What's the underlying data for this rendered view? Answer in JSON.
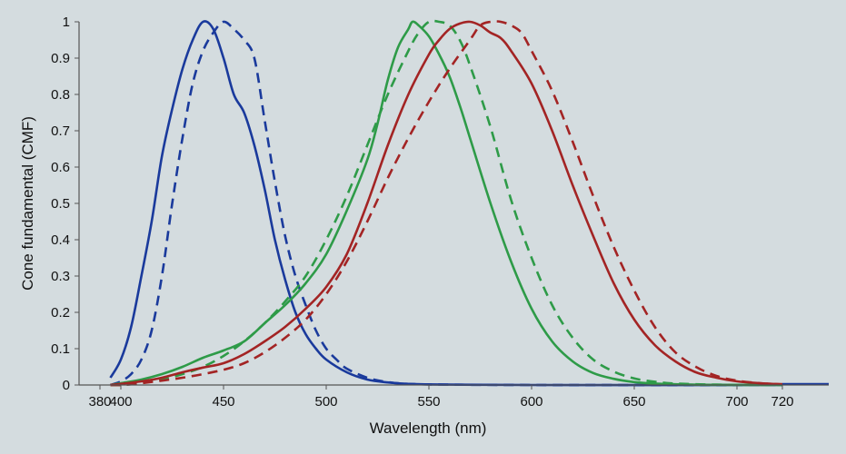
{
  "chart_data": {
    "type": "line",
    "title": "",
    "xlabel": "Wavelength (nm)",
    "ylabel": "Cone fundamental (CMF)",
    "xlim": [
      387,
      912
    ],
    "ylim": [
      0,
      1
    ],
    "x_ticks": [
      380,
      400,
      450,
      500,
      550,
      600,
      650,
      700,
      720
    ],
    "y_ticks": [
      "0",
      "0.1",
      "0.2",
      "0.3",
      "0.4",
      "0.5",
      "0.6",
      "0.7",
      "0.8",
      "0.9",
      "1"
    ],
    "plot_background": "#d4dcdf",
    "grid": false,
    "legend": "none",
    "series": [
      {
        "color": "#1a3a9c",
        "style": "solid",
        "points": [
          [
            390,
            0.02
          ],
          [
            400,
            0.07
          ],
          [
            405,
            0.16
          ],
          [
            410,
            0.3
          ],
          [
            415,
            0.45
          ],
          [
            420,
            0.63
          ],
          [
            425,
            0.76
          ],
          [
            430,
            0.87
          ],
          [
            435,
            0.95
          ],
          [
            440,
            1.0
          ],
          [
            445,
            0.98
          ],
          [
            450,
            0.9
          ],
          [
            455,
            0.8
          ],
          [
            460,
            0.75
          ],
          [
            465,
            0.66
          ],
          [
            470,
            0.54
          ],
          [
            475,
            0.4
          ],
          [
            480,
            0.29
          ],
          [
            485,
            0.2
          ],
          [
            490,
            0.14
          ],
          [
            495,
            0.1
          ],
          [
            500,
            0.07
          ],
          [
            510,
            0.035
          ],
          [
            520,
            0.015
          ],
          [
            530,
            0.007
          ],
          [
            540,
            0.003
          ],
          [
            560,
            0.001
          ],
          [
            600,
            0.0
          ],
          [
            720,
            0.0
          ]
        ]
      },
      {
        "color": "#1a3a9c",
        "style": "dashed",
        "points": [
          [
            390,
            0.0
          ],
          [
            400,
            0.01
          ],
          [
            405,
            0.03
          ],
          [
            410,
            0.07
          ],
          [
            415,
            0.15
          ],
          [
            420,
            0.3
          ],
          [
            425,
            0.5
          ],
          [
            430,
            0.68
          ],
          [
            435,
            0.83
          ],
          [
            440,
            0.92
          ],
          [
            445,
            0.97
          ],
          [
            450,
            1.0
          ],
          [
            455,
            0.98
          ],
          [
            460,
            0.95
          ],
          [
            465,
            0.9
          ],
          [
            470,
            0.73
          ],
          [
            475,
            0.56
          ],
          [
            480,
            0.41
          ],
          [
            485,
            0.3
          ],
          [
            490,
            0.22
          ],
          [
            495,
            0.15
          ],
          [
            500,
            0.1
          ],
          [
            505,
            0.07
          ],
          [
            510,
            0.045
          ],
          [
            520,
            0.02
          ],
          [
            530,
            0.008
          ],
          [
            540,
            0.003
          ],
          [
            560,
            0.001
          ],
          [
            600,
            0.0
          ],
          [
            720,
            0.0
          ]
        ]
      },
      {
        "color": "#2e9b48",
        "style": "solid",
        "points": [
          [
            390,
            0.0
          ],
          [
            400,
            0.005
          ],
          [
            410,
            0.015
          ],
          [
            420,
            0.03
          ],
          [
            430,
            0.05
          ],
          [
            440,
            0.075
          ],
          [
            450,
            0.095
          ],
          [
            460,
            0.12
          ],
          [
            470,
            0.17
          ],
          [
            480,
            0.22
          ],
          [
            490,
            0.28
          ],
          [
            500,
            0.36
          ],
          [
            510,
            0.48
          ],
          [
            520,
            0.62
          ],
          [
            525,
            0.72
          ],
          [
            530,
            0.84
          ],
          [
            535,
            0.93
          ],
          [
            540,
            0.98
          ],
          [
            542,
            1.0
          ],
          [
            545,
            0.99
          ],
          [
            550,
            0.96
          ],
          [
            555,
            0.91
          ],
          [
            560,
            0.85
          ],
          [
            565,
            0.77
          ],
          [
            570,
            0.68
          ],
          [
            580,
            0.5
          ],
          [
            590,
            0.34
          ],
          [
            600,
            0.21
          ],
          [
            610,
            0.12
          ],
          [
            620,
            0.065
          ],
          [
            630,
            0.033
          ],
          [
            640,
            0.017
          ],
          [
            650,
            0.008
          ],
          [
            660,
            0.004
          ],
          [
            670,
            0.002
          ],
          [
            690,
            0.0005
          ],
          [
            720,
            0.0
          ]
        ]
      },
      {
        "color": "#2e9b48",
        "style": "dashed",
        "points": [
          [
            390,
            0.0
          ],
          [
            400,
            0.0
          ],
          [
            410,
            0.005
          ],
          [
            420,
            0.015
          ],
          [
            430,
            0.03
          ],
          [
            440,
            0.05
          ],
          [
            450,
            0.08
          ],
          [
            460,
            0.12
          ],
          [
            470,
            0.17
          ],
          [
            480,
            0.23
          ],
          [
            490,
            0.3
          ],
          [
            500,
            0.4
          ],
          [
            510,
            0.52
          ],
          [
            520,
            0.66
          ],
          [
            530,
            0.8
          ],
          [
            540,
            0.92
          ],
          [
            545,
            0.97
          ],
          [
            550,
            1.0
          ],
          [
            555,
            1.0
          ],
          [
            560,
            0.99
          ],
          [
            565,
            0.95
          ],
          [
            570,
            0.88
          ],
          [
            580,
            0.71
          ],
          [
            590,
            0.51
          ],
          [
            600,
            0.35
          ],
          [
            610,
            0.22
          ],
          [
            620,
            0.13
          ],
          [
            630,
            0.07
          ],
          [
            640,
            0.037
          ],
          [
            650,
            0.018
          ],
          [
            660,
            0.009
          ],
          [
            670,
            0.004
          ],
          [
            690,
            0.001
          ],
          [
            720,
            0.0
          ]
        ]
      },
      {
        "color": "#a32424",
        "style": "solid",
        "points": [
          [
            390,
            0.0
          ],
          [
            400,
            0.003
          ],
          [
            410,
            0.01
          ],
          [
            420,
            0.02
          ],
          [
            430,
            0.035
          ],
          [
            440,
            0.048
          ],
          [
            450,
            0.06
          ],
          [
            460,
            0.085
          ],
          [
            470,
            0.12
          ],
          [
            480,
            0.16
          ],
          [
            490,
            0.21
          ],
          [
            500,
            0.27
          ],
          [
            510,
            0.36
          ],
          [
            520,
            0.5
          ],
          [
            530,
            0.66
          ],
          [
            540,
            0.8
          ],
          [
            550,
            0.91
          ],
          [
            555,
            0.95
          ],
          [
            560,
            0.98
          ],
          [
            565,
            0.995
          ],
          [
            570,
            1.0
          ],
          [
            575,
            0.99
          ],
          [
            580,
            0.97
          ],
          [
            585,
            0.955
          ],
          [
            590,
            0.92
          ],
          [
            600,
            0.83
          ],
          [
            610,
            0.7
          ],
          [
            620,
            0.55
          ],
          [
            630,
            0.41
          ],
          [
            640,
            0.28
          ],
          [
            650,
            0.18
          ],
          [
            660,
            0.11
          ],
          [
            670,
            0.065
          ],
          [
            680,
            0.035
          ],
          [
            690,
            0.02
          ],
          [
            700,
            0.01
          ],
          [
            710,
            0.005
          ],
          [
            720,
            0.002
          ]
        ]
      },
      {
        "color": "#a32424",
        "style": "dashed",
        "points": [
          [
            390,
            0.0
          ],
          [
            400,
            0.0
          ],
          [
            410,
            0.005
          ],
          [
            420,
            0.012
          ],
          [
            430,
            0.02
          ],
          [
            440,
            0.03
          ],
          [
            450,
            0.042
          ],
          [
            460,
            0.06
          ],
          [
            470,
            0.09
          ],
          [
            480,
            0.13
          ],
          [
            490,
            0.18
          ],
          [
            500,
            0.25
          ],
          [
            510,
            0.34
          ],
          [
            520,
            0.45
          ],
          [
            530,
            0.57
          ],
          [
            540,
            0.68
          ],
          [
            550,
            0.78
          ],
          [
            560,
            0.87
          ],
          [
            570,
            0.95
          ],
          [
            575,
            0.99
          ],
          [
            580,
            1.0
          ],
          [
            585,
            1.0
          ],
          [
            590,
            0.99
          ],
          [
            595,
            0.97
          ],
          [
            600,
            0.92
          ],
          [
            610,
            0.81
          ],
          [
            620,
            0.67
          ],
          [
            630,
            0.52
          ],
          [
            640,
            0.38
          ],
          [
            650,
            0.26
          ],
          [
            660,
            0.16
          ],
          [
            670,
            0.09
          ],
          [
            680,
            0.05
          ],
          [
            690,
            0.025
          ],
          [
            700,
            0.012
          ],
          [
            710,
            0.005
          ],
          [
            720,
            0.002
          ]
        ]
      }
    ]
  }
}
